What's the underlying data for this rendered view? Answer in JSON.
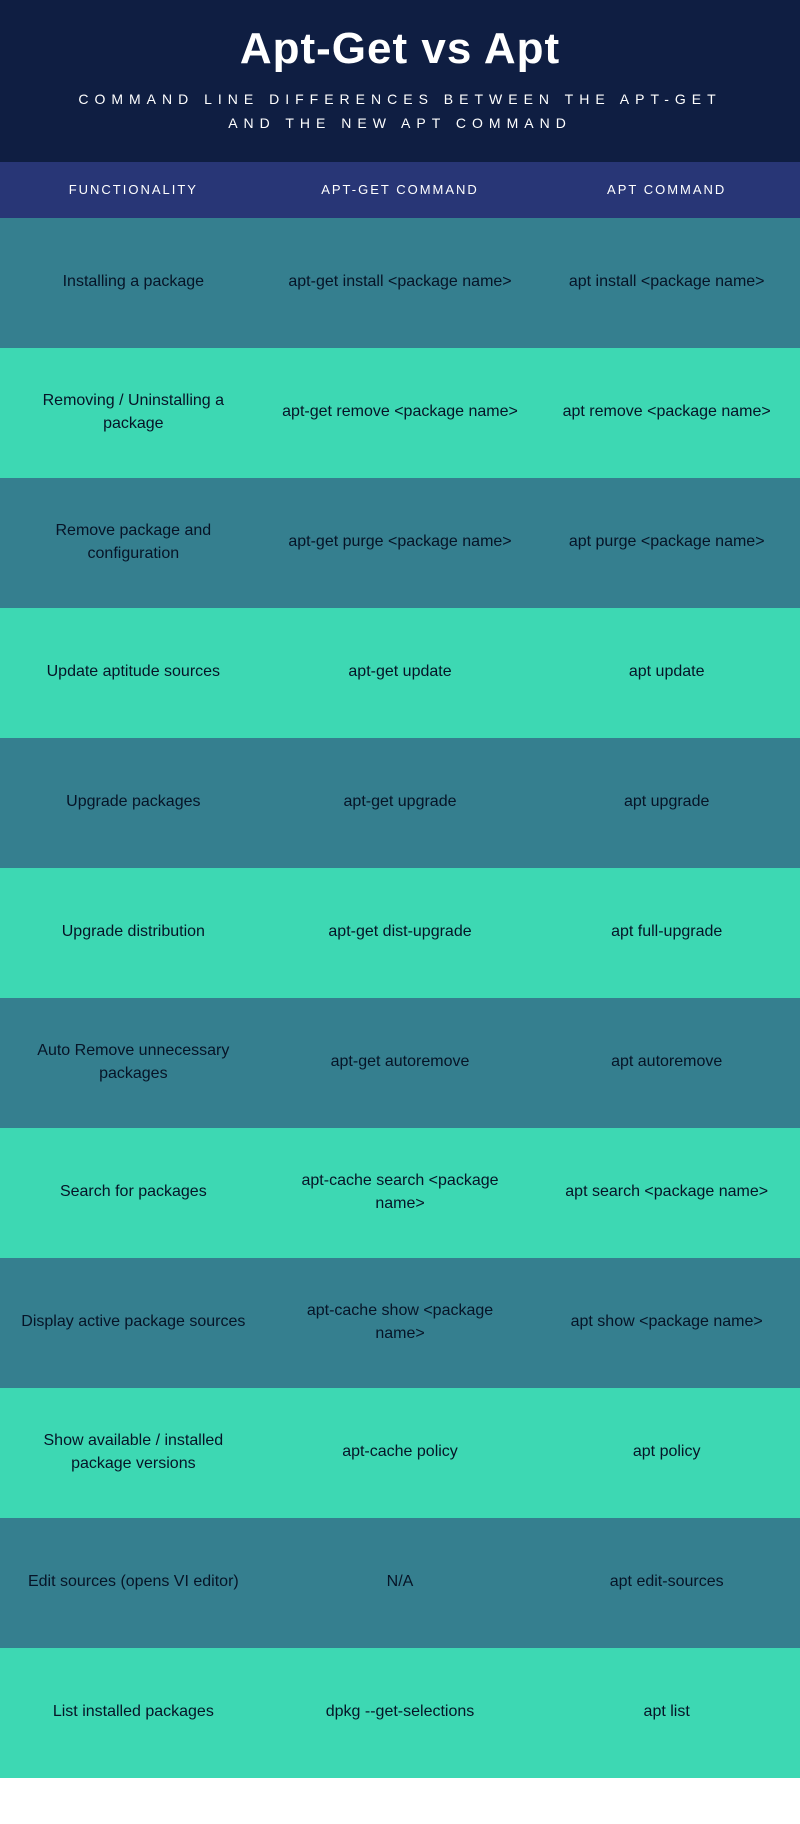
{
  "header": {
    "title": "Apt-Get vs Apt",
    "subtitle": "COMMAND LINE DIFFERENCES BETWEEN THE APT-GET AND THE NEW APT COMMAND"
  },
  "columns": {
    "c0": "FUNCTIONALITY",
    "c1": "APT-GET  COMMAND",
    "c2": "APT COMMAND"
  },
  "colors": {
    "header_bg": "#0f1e42",
    "thead_bg": "#283676",
    "row_dark": "#357f8f",
    "row_light": "#3dd8b3",
    "text_dark": "#061427",
    "text_light": "#ffffff"
  },
  "rows": [
    {
      "func": "Installing a package",
      "aptget": "apt-get install <package name>",
      "apt": "apt install <package name>"
    },
    {
      "func": "Removing / Uninstalling a package",
      "aptget": "apt-get remove <package name>",
      "apt": "apt remove <package name>"
    },
    {
      "func": "Remove package and configuration",
      "aptget": "apt-get purge <package name>",
      "apt": "apt purge <package name>"
    },
    {
      "func": "Update aptitude sources",
      "aptget": "apt-get update",
      "apt": "apt update"
    },
    {
      "func": "Upgrade packages",
      "aptget": "apt-get upgrade",
      "apt": "apt upgrade"
    },
    {
      "func": "Upgrade distribution",
      "aptget": "apt-get dist-upgrade",
      "apt": "apt full-upgrade"
    },
    {
      "func": "Auto Remove unnecessary packages",
      "aptget": "apt-get autoremove",
      "apt": "apt autoremove"
    },
    {
      "func": "Search for packages",
      "aptget": "apt-cache search <package name>",
      "apt": "apt search <package name>"
    },
    {
      "func": "Display active package sources",
      "aptget": "apt-cache show <package name>",
      "apt": "apt show <package name>"
    },
    {
      "func": "Show available / installed package versions",
      "aptget": "apt-cache policy",
      "apt": "apt policy"
    },
    {
      "func": "Edit sources (opens VI editor)",
      "aptget": "N/A",
      "apt": "apt edit-sources"
    },
    {
      "func": "List installed packages",
      "aptget": "dpkg --get-selections",
      "apt": "apt list"
    }
  ]
}
